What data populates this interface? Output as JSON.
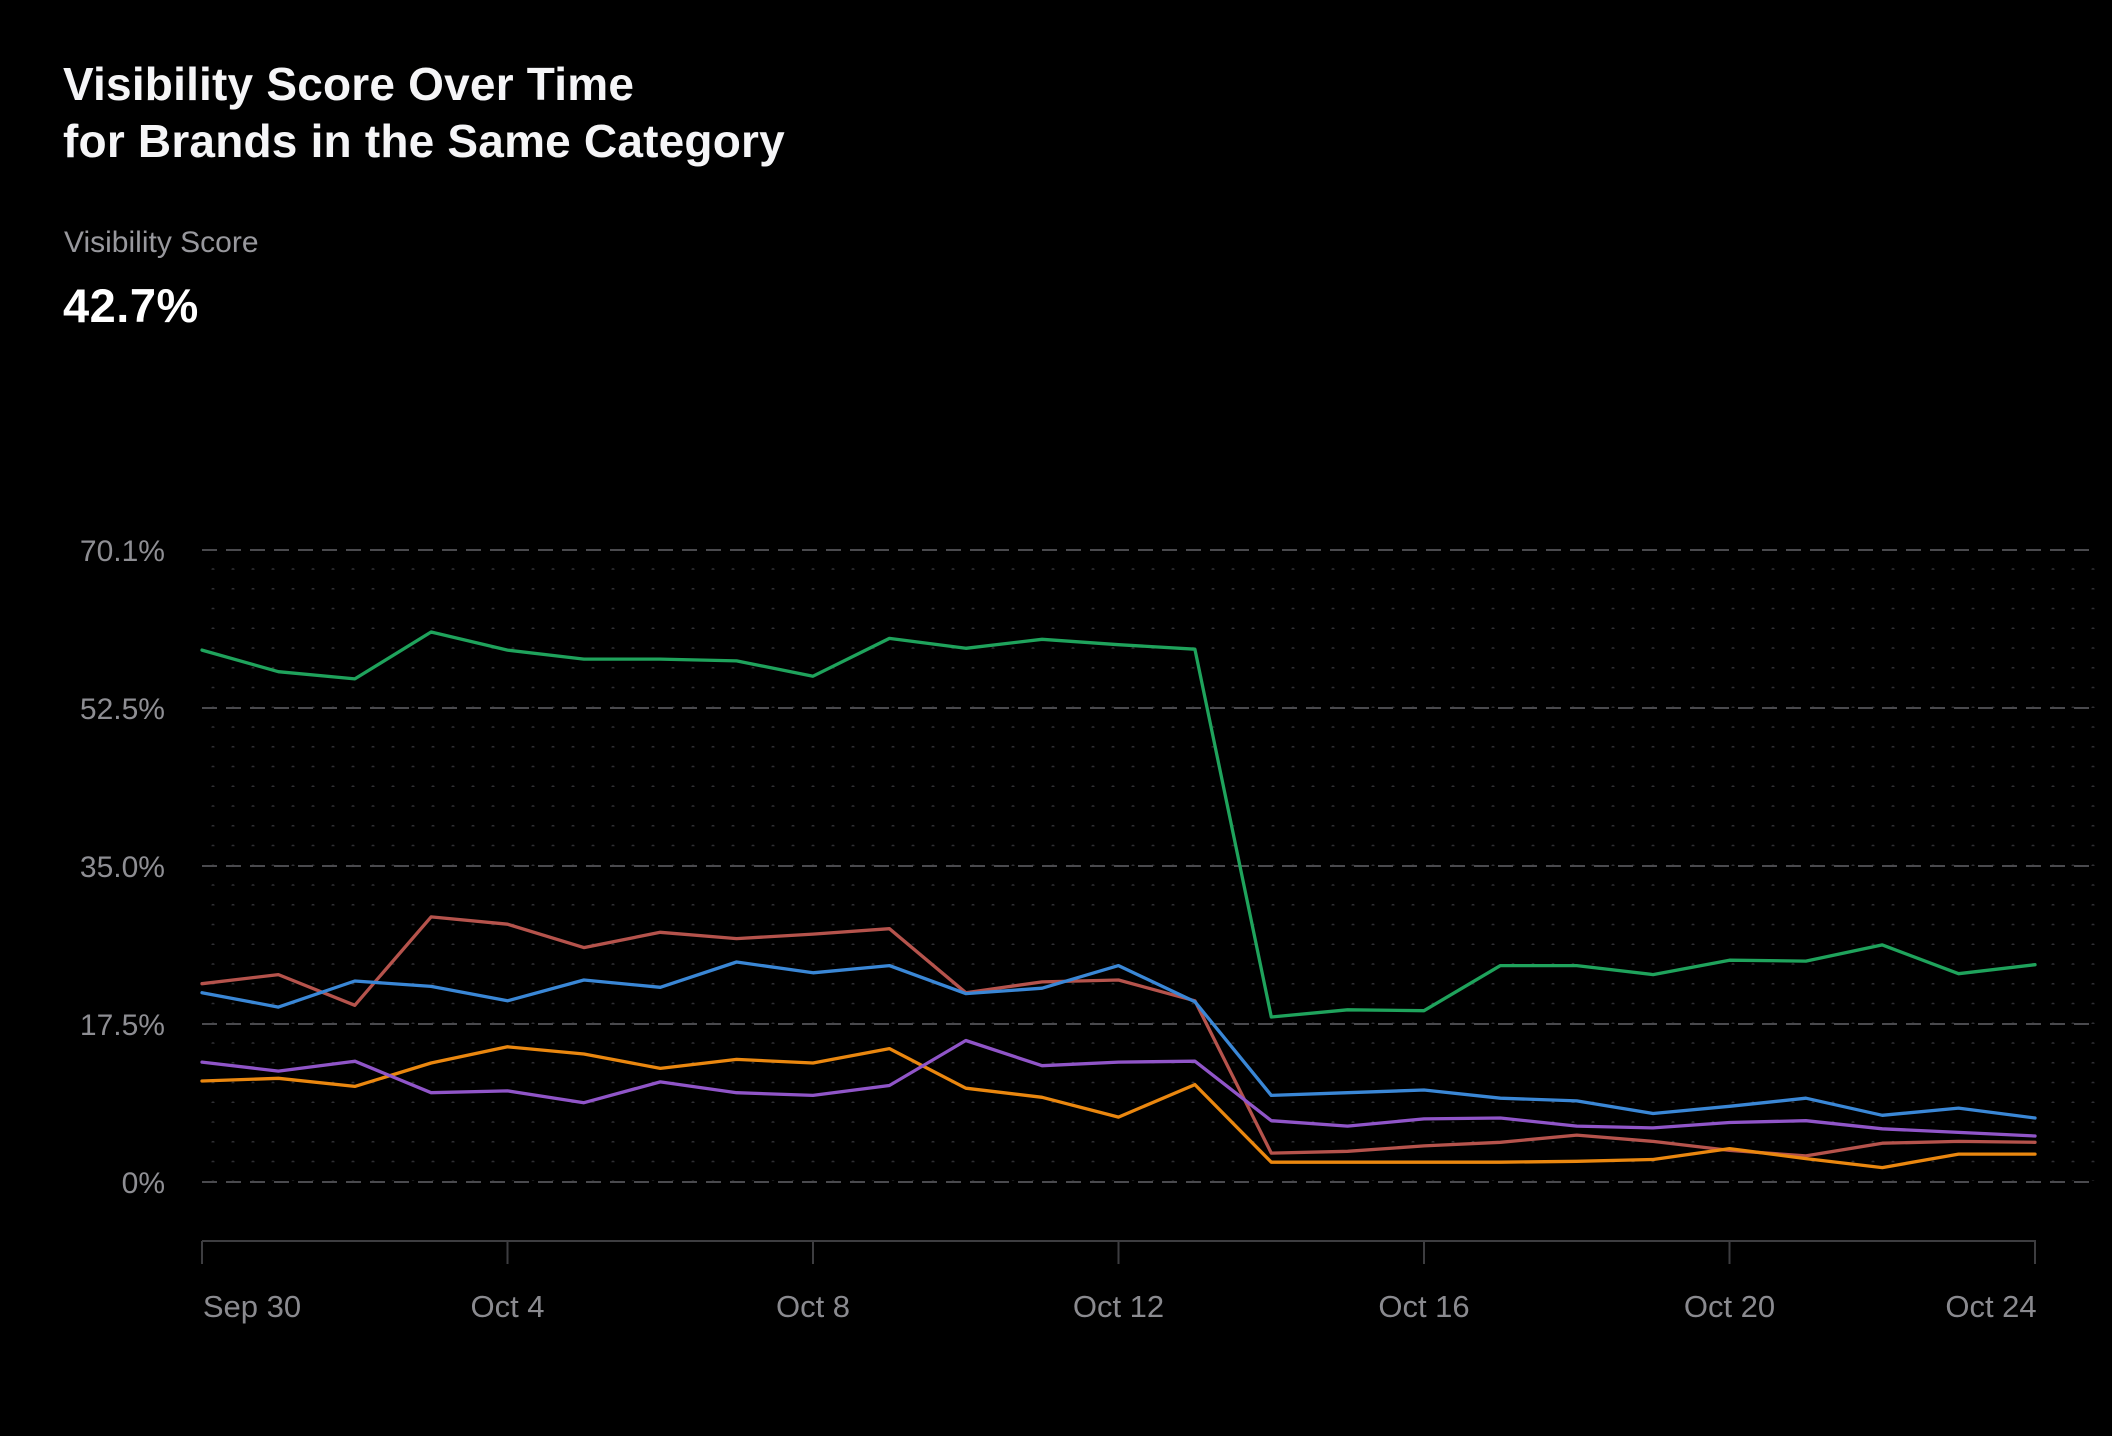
{
  "header": {
    "title_line1": "Visibility Score Over Time",
    "title_line2": "for Brands in the Same Category"
  },
  "metric": {
    "label": "Visibility Score",
    "value": "42.7%"
  },
  "chart_data": {
    "type": "line",
    "title": "Visibility Score Over Time for Brands in the Same Category",
    "xlabel": "",
    "ylabel": "Visibility Score",
    "ylim": [
      0,
      70.1
    ],
    "grid": "horizontal dashed lines with dot matrix",
    "legend": "none",
    "x": [
      "Sep 30",
      "Oct 1",
      "Oct 2",
      "Oct 3",
      "Oct 4",
      "Oct 5",
      "Oct 6",
      "Oct 7",
      "Oct 8",
      "Oct 9",
      "Oct 10",
      "Oct 11",
      "Oct 12",
      "Oct 13",
      "Oct 14",
      "Oct 15",
      "Oct 16",
      "Oct 17",
      "Oct 18",
      "Oct 19",
      "Oct 20",
      "Oct 21",
      "Oct 22",
      "Oct 23",
      "Oct 24"
    ],
    "x_tick_labels": [
      "Sep 30",
      "Oct 4",
      "Oct 8",
      "Oct 12",
      "Oct 16",
      "Oct 20",
      "Oct 24"
    ],
    "y_tick_labels": [
      "70.1%",
      "52.5%",
      "35.0%",
      "17.5%",
      "0%"
    ],
    "y_tick_values": [
      70.1,
      52.5,
      35.0,
      17.5,
      0
    ],
    "series": [
      {
        "name": "green",
        "color": "#1fa35c",
        "values": [
          59.0,
          56.6,
          55.8,
          61.0,
          59.0,
          58.0,
          58.0,
          57.8,
          56.1,
          60.3,
          59.2,
          60.2,
          59.6,
          59.1,
          18.3,
          19.1,
          19.0,
          24.0,
          24.0,
          23.0,
          24.6,
          24.5,
          26.3,
          23.1,
          24.1
        ]
      },
      {
        "name": "red",
        "color": "#b5534c",
        "values": [
          22.0,
          23.0,
          19.6,
          29.4,
          28.6,
          26.0,
          27.7,
          27.0,
          27.5,
          28.1,
          21.0,
          22.2,
          22.4,
          20.1,
          3.2,
          3.4,
          4.0,
          4.4,
          5.2,
          4.5,
          3.5,
          2.9,
          4.3,
          4.5,
          4.4
        ]
      },
      {
        "name": "blue",
        "color": "#3a87d6",
        "values": [
          21.0,
          19.4,
          22.3,
          21.7,
          20.1,
          22.4,
          21.6,
          24.4,
          23.2,
          24.0,
          20.9,
          21.5,
          24.0,
          20.0,
          9.6,
          9.9,
          10.2,
          9.3,
          9.0,
          7.6,
          8.4,
          9.3,
          7.4,
          8.2,
          7.1
        ]
      },
      {
        "name": "orange",
        "color": "#ea870f",
        "values": [
          11.2,
          11.5,
          10.6,
          13.2,
          15.0,
          14.2,
          12.6,
          13.6,
          13.2,
          14.8,
          10.4,
          9.4,
          7.2,
          10.8,
          2.2,
          2.2,
          2.2,
          2.2,
          2.3,
          2.5,
          3.7,
          2.6,
          1.6,
          3.1,
          3.1
        ]
      },
      {
        "name": "purple",
        "color": "#9055c8",
        "values": [
          13.3,
          12.3,
          13.4,
          9.9,
          10.1,
          8.8,
          11.1,
          9.9,
          9.6,
          10.7,
          15.7,
          12.9,
          13.3,
          13.4,
          6.8,
          6.2,
          7.0,
          7.1,
          6.2,
          6.0,
          6.6,
          6.8,
          5.9,
          5.5,
          5.1
        ]
      }
    ]
  },
  "style": {
    "background": "#000000",
    "gridline_color": "#4a4a4e",
    "dot_color": "#2f2f33",
    "axis_color": "#3d3d40",
    "title_color": "#f5f5f7",
    "metric_label_color": "#98989d",
    "metric_value_color": "#ffffff",
    "tick_label_color": "#8a8a8f"
  }
}
